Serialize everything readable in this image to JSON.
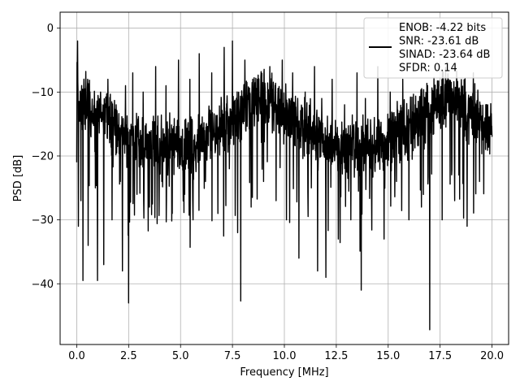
{
  "chart_data": {
    "type": "line",
    "title": "",
    "xlabel": "Frequency [MHz]",
    "ylabel": "PSD [dB]",
    "xlim": [
      -0.8,
      20.8
    ],
    "ylim": [
      -49.5,
      2.5
    ],
    "x_ticks": [
      0.0,
      2.5,
      5.0,
      7.5,
      10.0,
      12.5,
      15.0,
      17.5,
      20.0
    ],
    "x_tick_labels": [
      "0.0",
      "2.5",
      "5.0",
      "7.5",
      "10.0",
      "12.5",
      "15.0",
      "17.5",
      "20.0"
    ],
    "y_ticks": [
      0,
      -10,
      -20,
      -30,
      -40
    ],
    "y_tick_labels": [
      "0",
      "−10",
      "−20",
      "−30",
      "−40"
    ],
    "grid": true,
    "legend_position": "top-right",
    "line_color": "#000000",
    "legend_lines": [
      "ENOB: -4.22 bits",
      "SNR: -23.61 dB",
      "SINAD: -23.64 dB",
      "SFDR: 0.14"
    ],
    "series": [
      {
        "x": [
          0.0,
          0.04,
          0.08,
          0.12,
          0.2,
          0.25,
          0.3,
          0.45,
          0.55,
          0.7,
          0.9,
          1.0,
          1.15,
          1.3,
          1.5,
          1.7,
          1.9,
          2.1,
          2.2,
          2.35,
          2.5,
          2.7,
          2.9,
          3.2,
          3.5,
          3.8,
          4.1,
          4.3,
          4.6,
          4.9,
          5.2,
          5.45,
          5.6,
          5.9,
          6.2,
          6.5,
          6.8,
          7.1,
          7.35,
          7.5,
          7.75,
          7.9,
          8.1,
          8.4,
          8.7,
          9.0,
          9.3,
          9.6,
          9.9,
          10.1,
          10.4,
          10.7,
          11.0,
          11.3,
          11.45,
          11.6,
          11.8,
          12.0,
          12.3,
          12.6,
          12.9,
          13.2,
          13.5,
          13.7,
          13.9,
          14.2,
          14.5,
          14.8,
          15.1,
          15.4,
          15.7,
          16.0,
          16.3,
          16.6,
          16.9,
          17.0,
          17.3,
          17.6,
          17.9,
          18.2,
          18.5,
          18.8,
          19.1,
          19.4,
          19.7,
          20.0
        ],
        "y": [
          -21,
          -2,
          -31,
          -12,
          -27,
          -15,
          -39.5,
          -11,
          -34,
          -13,
          -25,
          -39.5,
          -10,
          -37,
          -8,
          -30,
          -12,
          -24,
          -38,
          -9,
          -43,
          -7,
          -26,
          -10,
          -28,
          -6,
          -24,
          -9,
          -29,
          -5,
          -26,
          -8,
          -30,
          -4,
          -24,
          -7,
          -29,
          -3,
          -22,
          -2,
          -32,
          -42.7,
          -5,
          -28,
          -8,
          -24,
          -6,
          -27,
          -5,
          -30,
          -7,
          -36,
          -10,
          -25,
          -6,
          -38,
          -11,
          -39,
          -8,
          -33,
          -12,
          -30,
          -7,
          -41,
          -11,
          -26,
          -6,
          -33,
          -10,
          -24,
          -8,
          -30,
          -12,
          -28,
          -9,
          -47.2,
          -11,
          -30,
          -8,
          -27,
          -10,
          -31,
          -7,
          -24,
          -12,
          -17
        ]
      }
    ]
  }
}
